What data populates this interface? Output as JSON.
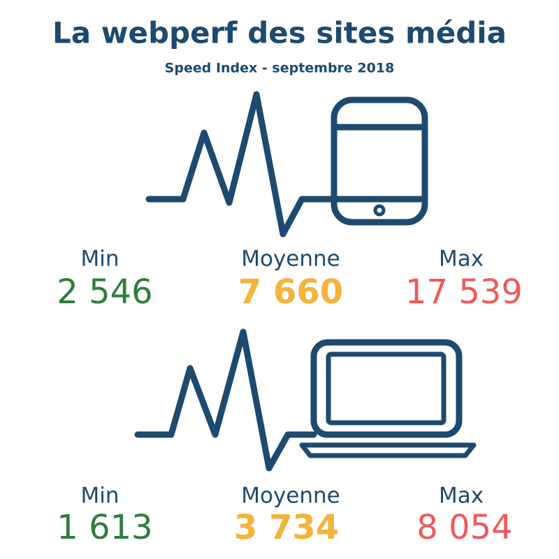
{
  "header": {
    "title": "La webperf des sites média",
    "subtitle": "Speed Index - septembre 2018"
  },
  "sections": [
    {
      "stats": [
        {
          "label": "Min",
          "value": "2 546"
        },
        {
          "label": "Moyenne",
          "value": "7 660"
        },
        {
          "label": "Max",
          "value": "17 539"
        }
      ]
    },
    {
      "stats": [
        {
          "label": "Min",
          "value": "1 613"
        },
        {
          "label": "Moyenne",
          "value": "3 734"
        },
        {
          "label": "Max",
          "value": "8 054"
        }
      ]
    }
  ]
}
